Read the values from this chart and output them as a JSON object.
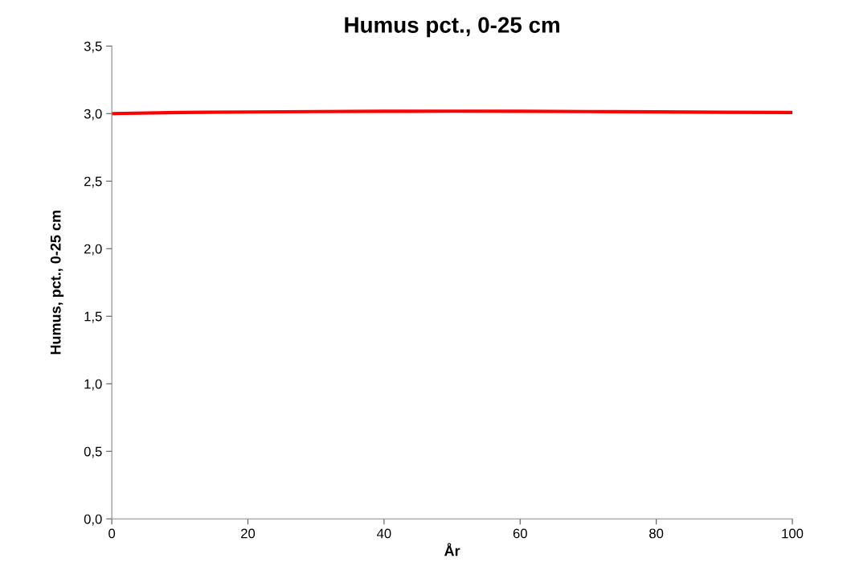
{
  "chart_data": {
    "type": "line",
    "title": "Humus pct., 0-25 cm",
    "xlabel": "År",
    "ylabel": "Humus, pct., 0-25 cm",
    "series": [
      {
        "color": "#ff0000",
        "x": [
          0,
          10,
          20,
          30,
          40,
          50,
          60,
          70,
          80,
          90,
          100
        ],
        "values": [
          3.0,
          3.008,
          3.012,
          3.015,
          3.017,
          3.018,
          3.017,
          3.015,
          3.013,
          3.01,
          3.008
        ]
      }
    ],
    "xlim": [
      0,
      100
    ],
    "xticks": [
      0,
      20,
      40,
      60,
      80,
      100
    ],
    "ylim": [
      0,
      3.5
    ],
    "yticks": [
      {
        "value": 0,
        "label": "0,0"
      },
      {
        "value": 0.5,
        "label": "0,5"
      },
      {
        "value": 1,
        "label": "1,0"
      },
      {
        "value": 1.5,
        "label": "1,5"
      },
      {
        "value": 2,
        "label": "2,0"
      },
      {
        "value": 2.5,
        "label": "2,5"
      },
      {
        "value": 3,
        "label": "3,0"
      },
      {
        "value": 3.5,
        "label": "3,5"
      }
    ],
    "grid": false,
    "legend": false,
    "marker": "none",
    "line_style": "solid"
  }
}
